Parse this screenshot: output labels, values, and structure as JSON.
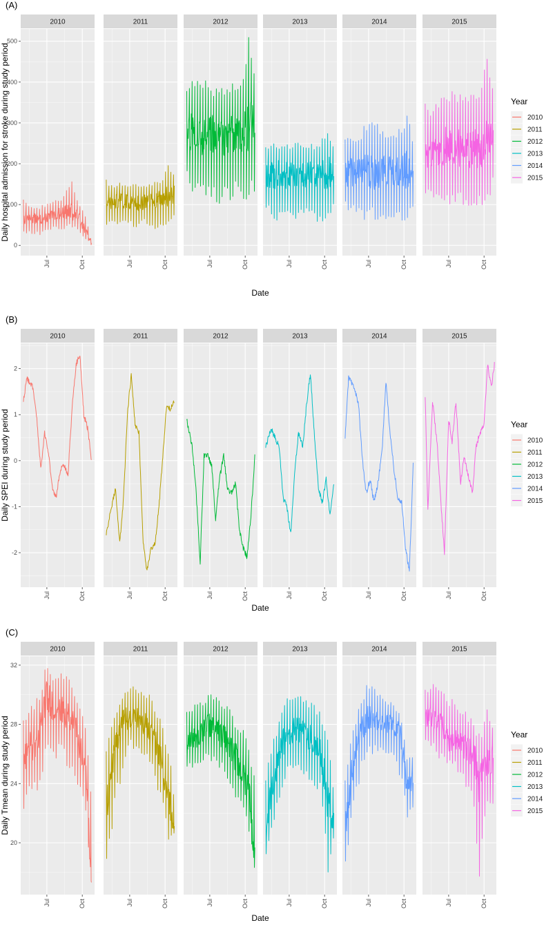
{
  "legend": {
    "title": "Year",
    "entries": [
      "2010",
      "2011",
      "2012",
      "2013",
      "2014",
      "2015"
    ],
    "colors": [
      "#F8766D",
      "#B79F00",
      "#00BA38",
      "#00BFC4",
      "#619CFF",
      "#F564E3"
    ]
  },
  "xlabel": "Date",
  "x_tick_labels": [
    "Jul",
    "Oct"
  ],
  "chart_data": [
    {
      "type": "line",
      "tag": "(A)",
      "ylabel": "Daily hospital admission for stroke during study period",
      "yticks": [
        0,
        100,
        200,
        300,
        400,
        500
      ],
      "ylim": [
        -25,
        530
      ],
      "facets": [
        "2010",
        "2011",
        "2012",
        "2013",
        "2014",
        "2015"
      ],
      "series": [
        {
          "name": "2010",
          "x": [
            "2010-05-01",
            "2010-05-20",
            "2010-06-10",
            "2010-07-01",
            "2010-07-20",
            "2010-08-10",
            "2010-09-01",
            "2010-09-20",
            "2010-10-10",
            "2010-10-25"
          ],
          "y": [
            65,
            70,
            62,
            68,
            75,
            80,
            85,
            72,
            35,
            5
          ],
          "low": [
            30,
            28,
            25,
            30,
            35,
            38,
            40,
            35,
            15,
            0
          ],
          "high": [
            115,
            100,
            95,
            105,
            110,
            115,
            170,
            105,
            75,
            10
          ]
        },
        {
          "name": "2011",
          "x": [
            "2011-05-01",
            "2011-05-20",
            "2011-06-10",
            "2011-07-01",
            "2011-07-20",
            "2011-08-10",
            "2011-09-01",
            "2011-09-20",
            "2011-10-10",
            "2011-10-25"
          ],
          "y": [
            100,
            105,
            110,
            108,
            104,
            106,
            110,
            115,
            120,
            125
          ],
          "low": [
            50,
            45,
            42,
            40,
            45,
            48,
            35,
            40,
            55,
            60
          ],
          "high": [
            165,
            150,
            155,
            150,
            155,
            150,
            160,
            160,
            205,
            185
          ]
        },
        {
          "name": "2012",
          "x": [
            "2012-05-01",
            "2012-05-20",
            "2012-06-10",
            "2012-07-01",
            "2012-07-20",
            "2012-08-10",
            "2012-09-01",
            "2012-09-20",
            "2012-10-10",
            "2012-10-25"
          ],
          "y": [
            270,
            280,
            275,
            270,
            265,
            270,
            275,
            280,
            300,
            310
          ],
          "low": [
            160,
            120,
            105,
            110,
            100,
            105,
            110,
            100,
            110,
            115
          ],
          "high": [
            385,
            415,
            410,
            400,
            395,
            380,
            400,
            395,
            520,
            410
          ]
        },
        {
          "name": "2013",
          "x": [
            "2013-05-01",
            "2013-05-20",
            "2013-06-10",
            "2013-07-01",
            "2013-07-20",
            "2013-08-10",
            "2013-09-01",
            "2013-09-20",
            "2013-10-10",
            "2013-10-25"
          ],
          "y": [
            170,
            175,
            172,
            170,
            168,
            172,
            175,
            170,
            180,
            178
          ],
          "low": [
            85,
            60,
            55,
            65,
            60,
            60,
            55,
            45,
            70,
            75
          ],
          "high": [
            245,
            265,
            255,
            250,
            260,
            245,
            250,
            255,
            300,
            240
          ]
        },
        {
          "name": "2014",
          "x": [
            "2014-05-01",
            "2014-05-20",
            "2014-06-10",
            "2014-07-01",
            "2014-07-20",
            "2014-08-10",
            "2014-09-01",
            "2014-09-20",
            "2014-10-10",
            "2014-10-25"
          ],
          "y": [
            175,
            180,
            185,
            180,
            178,
            182,
            180,
            175,
            185,
            180
          ],
          "low": [
            80,
            70,
            65,
            60,
            55,
            60,
            50,
            55,
            55,
            85
          ],
          "high": [
            265,
            270,
            265,
            330,
            300,
            285,
            265,
            290,
            340,
            255
          ]
        },
        {
          "name": "2015",
          "x": [
            "2015-05-01",
            "2015-05-20",
            "2015-06-10",
            "2015-07-01",
            "2015-07-20",
            "2015-08-10",
            "2015-09-01",
            "2015-09-20",
            "2015-10-10",
            "2015-10-25"
          ],
          "y": [
            230,
            235,
            240,
            245,
            240,
            235,
            240,
            230,
            250,
            260
          ],
          "low": [
            105,
            95,
            90,
            100,
            95,
            90,
            95,
            85,
            110,
            130
          ],
          "high": [
            355,
            340,
            375,
            385,
            380,
            360,
            375,
            385,
            475,
            405
          ]
        }
      ]
    },
    {
      "type": "line",
      "tag": "(B)",
      "ylabel": "Daily SPEI during study period",
      "yticks": [
        -2,
        -1,
        0,
        1,
        2
      ],
      "ylim": [
        -2.75,
        2.55
      ],
      "facets": [
        "2010",
        "2011",
        "2012",
        "2013",
        "2014",
        "2015"
      ],
      "series": [
        {
          "name": "2010",
          "x": [
            "2010-05-01",
            "2010-05-10",
            "2010-05-25",
            "2010-06-05",
            "2010-06-15",
            "2010-06-25",
            "2010-07-05",
            "2010-07-15",
            "2010-07-25",
            "2010-08-05",
            "2010-08-15",
            "2010-08-25",
            "2010-09-05",
            "2010-09-15",
            "2010-09-25",
            "2010-10-05",
            "2010-10-15",
            "2010-10-25"
          ],
          "y": [
            1.3,
            1.8,
            1.6,
            0.9,
            -0.2,
            0.6,
            0.2,
            -0.6,
            -0.8,
            -0.2,
            -0.1,
            -0.3,
            1.2,
            2.1,
            2.3,
            1.0,
            0.7,
            0.0
          ]
        },
        {
          "name": "2011",
          "x": [
            "2011-05-01",
            "2011-05-15",
            "2011-05-25",
            "2011-06-05",
            "2011-06-15",
            "2011-06-25",
            "2011-07-05",
            "2011-07-15",
            "2011-07-25",
            "2011-08-05",
            "2011-08-15",
            "2011-08-25",
            "2011-09-05",
            "2011-09-15",
            "2011-09-25",
            "2011-10-05",
            "2011-10-15",
            "2011-10-25"
          ],
          "y": [
            -1.6,
            -1.0,
            -0.6,
            -1.8,
            -0.8,
            1.0,
            1.9,
            0.8,
            0.6,
            -1.8,
            -2.4,
            -1.9,
            -1.8,
            -1.0,
            0.1,
            1.2,
            1.1,
            1.3
          ]
        },
        {
          "name": "2012",
          "x": [
            "2012-05-01",
            "2012-05-15",
            "2012-05-25",
            "2012-06-05",
            "2012-06-15",
            "2012-06-25",
            "2012-07-05",
            "2012-07-15",
            "2012-07-25",
            "2012-08-05",
            "2012-08-15",
            "2012-08-25",
            "2012-09-05",
            "2012-09-15",
            "2012-09-25",
            "2012-10-05",
            "2012-10-15",
            "2012-10-25"
          ],
          "y": [
            0.9,
            0.3,
            -0.6,
            -2.2,
            0.1,
            0.1,
            -0.1,
            -1.3,
            -0.4,
            0.1,
            -0.6,
            -0.7,
            -0.5,
            -1.5,
            -1.9,
            -2.1,
            -1.2,
            0.1
          ]
        },
        {
          "name": "2013",
          "x": [
            "2013-05-01",
            "2013-05-15",
            "2013-05-25",
            "2013-06-05",
            "2013-06-15",
            "2013-06-25",
            "2013-07-05",
            "2013-07-15",
            "2013-07-25",
            "2013-08-05",
            "2013-08-15",
            "2013-08-25",
            "2013-09-05",
            "2013-09-15",
            "2013-09-25",
            "2013-10-05",
            "2013-10-15",
            "2013-10-25"
          ],
          "y": [
            0.3,
            0.7,
            0.5,
            0.3,
            -0.8,
            -1.0,
            -1.6,
            -0.3,
            0.6,
            0.3,
            1.2,
            1.9,
            0.5,
            -0.6,
            -0.9,
            -0.4,
            -1.2,
            -0.5
          ]
        },
        {
          "name": "2014",
          "x": [
            "2014-05-01",
            "2014-05-10",
            "2014-05-25",
            "2014-06-05",
            "2014-06-15",
            "2014-06-25",
            "2014-07-05",
            "2014-07-15",
            "2014-07-25",
            "2014-08-05",
            "2014-08-15",
            "2014-08-25",
            "2014-09-05",
            "2014-09-15",
            "2014-09-25",
            "2014-10-05",
            "2014-10-15",
            "2014-10-25"
          ],
          "y": [
            0.5,
            1.8,
            1.6,
            1.2,
            0.0,
            -0.7,
            -0.4,
            -0.9,
            -0.5,
            0.2,
            1.7,
            0.7,
            -0.2,
            -0.8,
            -0.9,
            -1.9,
            -2.4,
            -0.1
          ]
        },
        {
          "name": "2015",
          "x": [
            "2015-05-01",
            "2015-05-08",
            "2015-05-20",
            "2015-06-01",
            "2015-06-10",
            "2015-06-20",
            "2015-07-01",
            "2015-07-10",
            "2015-07-20",
            "2015-08-01",
            "2015-08-10",
            "2015-08-20",
            "2015-09-01",
            "2015-09-10",
            "2015-09-20",
            "2015-10-01",
            "2015-10-10",
            "2015-10-20",
            "2015-10-28"
          ],
          "y": [
            1.4,
            -1.1,
            1.3,
            0.4,
            -0.8,
            -2.0,
            0.9,
            0.4,
            1.3,
            -0.5,
            0.1,
            -0.3,
            -0.7,
            0.3,
            0.6,
            0.8,
            2.1,
            1.6,
            2.1
          ]
        }
      ]
    },
    {
      "type": "line",
      "tag": "(C)",
      "ylabel": "Daily Tmean during study period",
      "yticks": [
        20,
        24,
        28,
        32
      ],
      "ylim": [
        16.5,
        32.6
      ],
      "facets": [
        "2010",
        "2011",
        "2012",
        "2013",
        "2014",
        "2015"
      ],
      "series": [
        {
          "name": "2010",
          "x": [
            "2010-05-01",
            "2010-05-20",
            "2010-06-10",
            "2010-07-01",
            "2010-07-20",
            "2010-08-10",
            "2010-09-01",
            "2010-09-20",
            "2010-10-10",
            "2010-10-25"
          ],
          "y": [
            25.5,
            26.5,
            27.0,
            30.0,
            29.0,
            29.0,
            28.5,
            27.0,
            25.0,
            17.5
          ],
          "low": [
            21.5,
            23.5,
            23.5,
            26.0,
            25.5,
            26.0,
            24.5,
            23.0,
            22.0,
            17.0
          ],
          "high": [
            28.5,
            29.5,
            30.0,
            32.2,
            31.0,
            31.5,
            31.0,
            30.0,
            28.5,
            24.0
          ]
        },
        {
          "name": "2011",
          "x": [
            "2011-05-01",
            "2011-05-20",
            "2011-06-10",
            "2011-07-01",
            "2011-07-20",
            "2011-08-10",
            "2011-09-01",
            "2011-09-20",
            "2011-10-10",
            "2011-10-25"
          ],
          "y": [
            22.5,
            26.0,
            28.0,
            28.5,
            28.5,
            28.0,
            27.0,
            26.0,
            23.0,
            21.0
          ],
          "low": [
            18.5,
            21.5,
            24.5,
            26.5,
            26.0,
            25.5,
            24.5,
            22.5,
            20.0,
            20.5
          ],
          "high": [
            26.5,
            28.5,
            30.0,
            30.8,
            30.5,
            30.5,
            29.5,
            28.5,
            26.5,
            23.5
          ]
        },
        {
          "name": "2012",
          "x": [
            "2012-05-01",
            "2012-05-20",
            "2012-06-10",
            "2012-07-01",
            "2012-07-20",
            "2012-08-10",
            "2012-09-01",
            "2012-09-20",
            "2012-10-10",
            "2012-10-25"
          ],
          "y": [
            27.0,
            27.0,
            27.5,
            28.0,
            27.5,
            27.0,
            26.0,
            25.0,
            23.5,
            19.0
          ],
          "low": [
            24.5,
            25.0,
            25.5,
            25.5,
            25.0,
            24.5,
            23.0,
            22.0,
            20.5,
            18.0
          ],
          "high": [
            29.0,
            29.5,
            29.5,
            30.5,
            30.0,
            29.5,
            28.5,
            28.0,
            26.5,
            24.5
          ]
        },
        {
          "name": "2013",
          "x": [
            "2013-05-01",
            "2013-05-20",
            "2013-06-10",
            "2013-07-01",
            "2013-07-20",
            "2013-08-10",
            "2013-09-01",
            "2013-09-20",
            "2013-10-10",
            "2013-10-25"
          ],
          "y": [
            21.0,
            24.0,
            26.5,
            27.5,
            27.5,
            27.5,
            27.0,
            26.5,
            22.5,
            21.5
          ],
          "low": [
            18.8,
            21.0,
            23.5,
            25.0,
            24.5,
            24.5,
            24.0,
            23.0,
            17.5,
            20.5
          ],
          "high": [
            24.5,
            27.0,
            29.0,
            30.2,
            30.0,
            30.0,
            29.5,
            29.0,
            27.0,
            23.5
          ]
        },
        {
          "name": "2014",
          "x": [
            "2014-05-01",
            "2014-05-20",
            "2014-06-10",
            "2014-07-01",
            "2014-07-20",
            "2014-08-10",
            "2014-09-01",
            "2014-09-20",
            "2014-10-10",
            "2014-10-25"
          ],
          "y": [
            21.0,
            25.0,
            27.5,
            28.5,
            28.5,
            28.0,
            28.0,
            27.5,
            23.5,
            24.5
          ],
          "low": [
            18.5,
            21.5,
            24.5,
            26.0,
            26.0,
            25.5,
            25.5,
            24.5,
            21.5,
            22.0
          ],
          "high": [
            24.5,
            27.5,
            29.5,
            31.0,
            30.5,
            30.0,
            29.5,
            29.0,
            26.0,
            26.0
          ]
        },
        {
          "name": "2015",
          "x": [
            "2015-05-01",
            "2015-05-20",
            "2015-06-10",
            "2015-07-01",
            "2015-07-20",
            "2015-08-10",
            "2015-09-01",
            "2015-09-20",
            "2015-10-10",
            "2015-10-25"
          ],
          "y": [
            28.5,
            28.5,
            28.0,
            27.0,
            27.0,
            26.5,
            26.0,
            24.0,
            25.0,
            26.0
          ],
          "low": [
            26.5,
            26.5,
            25.5,
            25.0,
            25.0,
            24.0,
            23.0,
            17.2,
            22.5,
            22.5
          ],
          "high": [
            30.5,
            30.8,
            30.5,
            30.0,
            29.5,
            29.0,
            28.5,
            27.5,
            29.8,
            28.0
          ]
        }
      ]
    }
  ]
}
